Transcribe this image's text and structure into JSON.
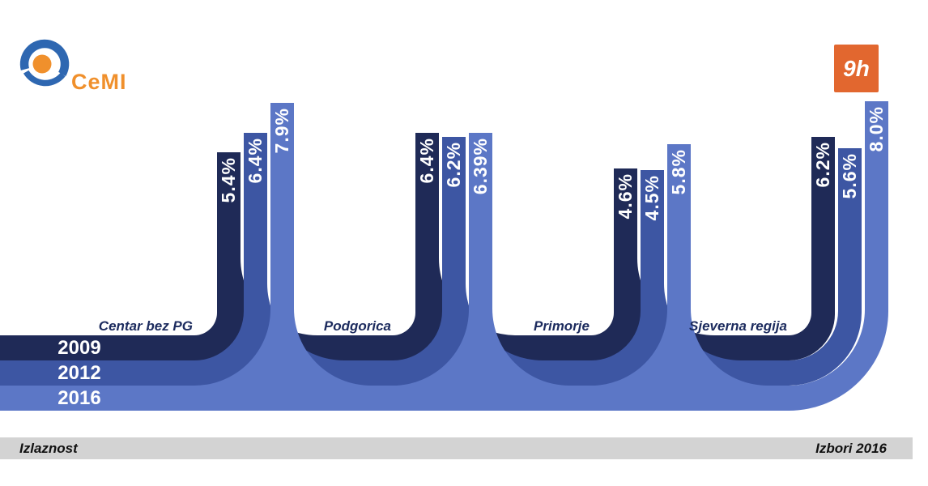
{
  "logo": {
    "text": "CeMI",
    "color_blue": "#2e67b1",
    "color_orange": "#f0902c"
  },
  "badge": {
    "label": "9h",
    "bg_color": "#e2672f"
  },
  "footer": {
    "left_label": "Izlaznost",
    "right_label": "Izbori 2016",
    "bar_color": "#d3d3d3"
  },
  "chart_data": {
    "type": "bar",
    "title": "Izlaznost",
    "context_label": "Izbori 2016",
    "categories": [
      "Centar bez PG",
      "Podgorica",
      "Primorje",
      "Sjeverna regija"
    ],
    "series": [
      {
        "name": "2009",
        "color": "#1f2a57",
        "values": [
          5.4,
          6.4,
          4.6,
          6.2
        ],
        "labels": [
          "5.4%",
          "6.4%",
          "4.6%",
          "6.2%"
        ]
      },
      {
        "name": "2012",
        "color": "#3d56a3",
        "values": [
          6.4,
          6.2,
          4.5,
          5.6
        ],
        "labels": [
          "6.4%",
          "6.2%",
          "4.5%",
          "5.6%"
        ]
      },
      {
        "name": "2016",
        "color": "#5c77c6",
        "values": [
          7.9,
          6.39,
          5.8,
          8.0
        ],
        "labels": [
          "7.9%",
          "6.39%",
          "5.8%",
          "8.0%"
        ]
      }
    ],
    "unit": "%",
    "value_range_hint": [
      0,
      10
    ],
    "grid": false,
    "legend": {
      "position": "left-inside-bands",
      "entries": [
        "2009",
        "2012",
        "2016"
      ]
    },
    "style": "ribbon bands curving up into vertical bars at each region"
  }
}
